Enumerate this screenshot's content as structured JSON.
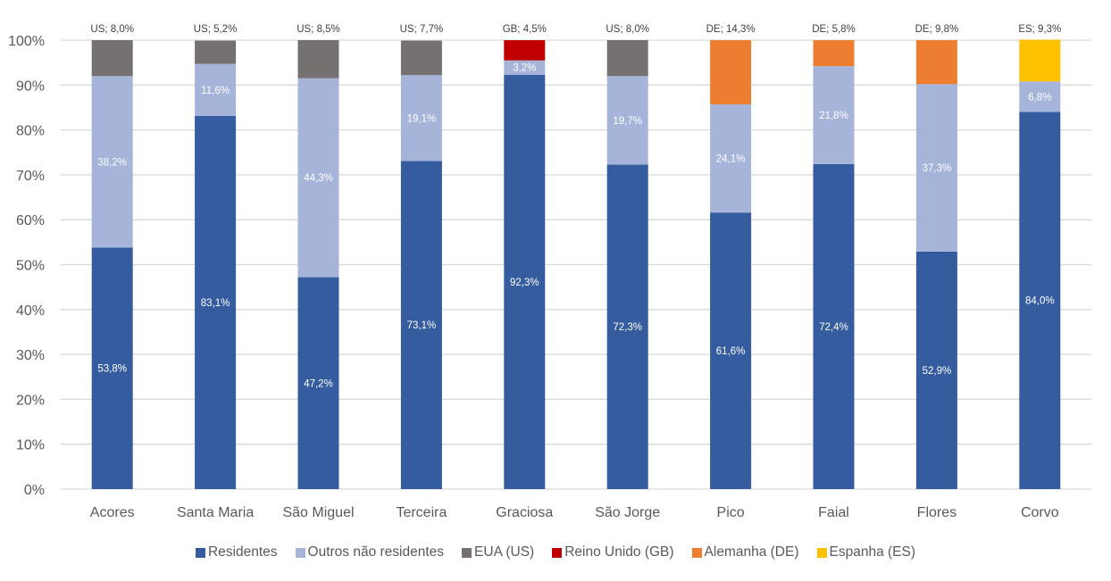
{
  "chart_data": {
    "type": "bar",
    "stacked": true,
    "percent_stacked": true,
    "title": "",
    "xlabel": "",
    "ylabel": "",
    "ylim": [
      0,
      100
    ],
    "y_ticks": [
      "0%",
      "10%",
      "20%",
      "30%",
      "40%",
      "50%",
      "60%",
      "70%",
      "80%",
      "90%",
      "100%"
    ],
    "y_tick_values": [
      0,
      10,
      20,
      30,
      40,
      50,
      60,
      70,
      80,
      90,
      100
    ],
    "grid": true,
    "legend_position": "bottom",
    "categories": [
      "Acores",
      "Santa Maria",
      "São Miguel",
      "Terceira",
      "Graciosa",
      "São Jorge",
      "Pico",
      "Faial",
      "Flores",
      "Corvo"
    ],
    "series": [
      {
        "name": "Residentes",
        "color": "#355C9F",
        "values": [
          53.8,
          83.1,
          47.2,
          73.1,
          92.3,
          72.3,
          61.6,
          72.4,
          52.9,
          84.0
        ],
        "labels": [
          "53,8%",
          "83,1%",
          "47,2%",
          "73,1%",
          "92,3%",
          "72,3%",
          "61,6%",
          "72,4%",
          "52,9%",
          "84,0%"
        ]
      },
      {
        "name": "Outros não residentes",
        "color": "#A6B4DA",
        "values": [
          38.2,
          11.6,
          44.3,
          19.1,
          3.2,
          19.7,
          24.1,
          21.8,
          37.3,
          6.8
        ],
        "labels": [
          "38,2%",
          "11,6%",
          "44,3%",
          "19,1%",
          "3,2%",
          "19,7%",
          "24,1%",
          "21,8%",
          "37,3%",
          "6,8%"
        ]
      },
      {
        "name": "EUA (US)",
        "color": "#767171",
        "values": [
          8.0,
          5.2,
          8.5,
          7.7,
          0,
          8.0,
          0,
          0,
          0,
          0
        ]
      },
      {
        "name": "Reino Unido (GB)",
        "color": "#C00000",
        "values": [
          0,
          0,
          0,
          0,
          4.5,
          0,
          0,
          0,
          0,
          0
        ]
      },
      {
        "name": "Alemanha (DE)",
        "color": "#ED7D31",
        "values": [
          0,
          0,
          0,
          0,
          0,
          0,
          14.3,
          5.8,
          9.8,
          0
        ]
      },
      {
        "name": "Espanha (ES)",
        "color": "#FFC000",
        "values": [
          0,
          0,
          0,
          0,
          0,
          0,
          0,
          0,
          0,
          9.3
        ]
      }
    ],
    "top_labels": [
      "US; 8,0%",
      "US; 5,2%",
      "US; 8,5%",
      "US; 7,7%",
      "GB; 4,5%",
      "US; 8,0%",
      "DE; 14,3%",
      "DE; 5,8%",
      "DE; 9,8%",
      "ES; 9,3%"
    ]
  },
  "legend": [
    {
      "label": "Residentes",
      "color": "#355C9F"
    },
    {
      "label": "Outros não residentes",
      "color": "#A6B4DA"
    },
    {
      "label": "EUA (US)",
      "color": "#767171"
    },
    {
      "label": "Reino Unido (GB)",
      "color": "#C00000"
    },
    {
      "label": "Alemanha (DE)",
      "color": "#ED7D31"
    },
    {
      "label": "Espanha (ES)",
      "color": "#FFC000"
    }
  ]
}
